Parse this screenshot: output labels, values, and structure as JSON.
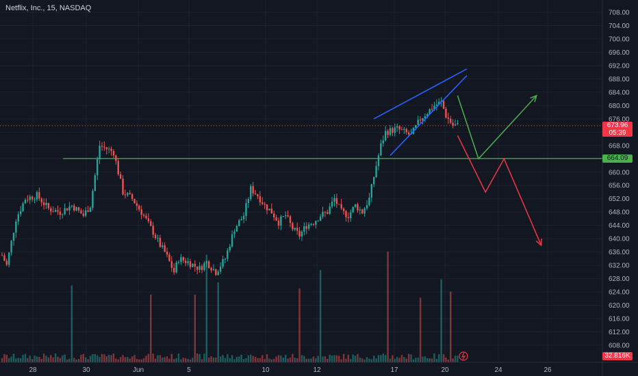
{
  "header": {
    "title": "Netflix, Inc., 15, NASDAQ"
  },
  "colors": {
    "background": "#131722",
    "up": "#26a69a",
    "down": "#ef5350",
    "level": "#4caf50",
    "wedge": "#2962ff",
    "bull": "#4caf50",
    "bear": "#f23645"
  },
  "price_tag": {
    "price": "673.96",
    "timer": "05:39"
  },
  "level_tag": {
    "value": "664.09"
  },
  "volume_tag": {
    "value": "32.816K"
  },
  "chart_data": {
    "type": "candlestick",
    "title": "Netflix, Inc., 15, NASDAQ",
    "xlabel": "",
    "ylabel": "",
    "ylim": [
      604,
      710
    ],
    "y_ticks": [
      "708.00",
      "704.00",
      "700.00",
      "696.00",
      "692.00",
      "688.00",
      "684.00",
      "680.00",
      "676.00",
      "672.00",
      "668.00",
      "664.00",
      "660.00",
      "656.00",
      "652.00",
      "648.00",
      "644.00",
      "640.00",
      "636.00",
      "632.00",
      "628.00",
      "624.00",
      "620.00",
      "616.00",
      "612.00",
      "608.00"
    ],
    "x_ticks": [
      "28",
      "30",
      "Jun",
      "5",
      "10",
      "12",
      "17",
      "20",
      "24",
      "26"
    ],
    "price_path": [
      [
        0,
        635
      ],
      [
        2,
        632
      ],
      [
        6,
        646
      ],
      [
        10,
        652
      ],
      [
        15,
        653
      ],
      [
        20,
        649
      ],
      [
        25,
        648
      ],
      [
        30,
        650
      ],
      [
        35,
        647
      ],
      [
        38,
        650
      ],
      [
        42,
        668
      ],
      [
        48,
        666
      ],
      [
        52,
        654
      ],
      [
        56,
        652
      ],
      [
        60,
        648
      ],
      [
        65,
        642
      ],
      [
        68,
        638
      ],
      [
        70,
        636
      ],
      [
        72,
        633
      ],
      [
        74,
        630
      ],
      [
        76,
        634
      ],
      [
        80,
        633
      ],
      [
        85,
        631
      ],
      [
        88,
        633
      ],
      [
        92,
        630
      ],
      [
        96,
        634
      ],
      [
        100,
        643
      ],
      [
        104,
        647
      ],
      [
        107,
        655
      ],
      [
        110,
        653
      ],
      [
        113,
        650
      ],
      [
        116,
        648
      ],
      [
        119,
        645
      ],
      [
        122,
        647
      ],
      [
        125,
        643
      ],
      [
        128,
        641
      ],
      [
        131,
        644
      ],
      [
        134,
        645
      ],
      [
        137,
        647
      ],
      [
        140,
        648
      ],
      [
        143,
        652
      ],
      [
        146,
        648
      ],
      [
        149,
        647
      ],
      [
        152,
        650
      ],
      [
        155,
        648
      ],
      [
        158,
        652
      ],
      [
        161,
        662
      ],
      [
        163,
        668
      ],
      [
        165,
        672
      ],
      [
        170,
        673
      ],
      [
        176,
        671
      ],
      [
        180,
        676
      ],
      [
        186,
        680
      ],
      [
        189,
        681
      ],
      [
        191,
        677
      ],
      [
        194,
        674
      ],
      [
        196,
        673.96
      ]
    ],
    "volume_spikes": [
      [
        30,
        25
      ],
      [
        64,
        22
      ],
      [
        83,
        22
      ],
      [
        88,
        35
      ],
      [
        93,
        26
      ],
      [
        128,
        24
      ],
      [
        137,
        30
      ],
      [
        166,
        36
      ],
      [
        180,
        21
      ],
      [
        189,
        27
      ],
      [
        193,
        23
      ]
    ],
    "horizontal_level": 664.09,
    "current_price": 673.96,
    "wedge_upper": [
      [
        160,
        676
      ],
      [
        200,
        691
      ]
    ],
    "wedge_lower": [
      [
        167,
        665
      ],
      [
        200,
        689
      ]
    ],
    "projection_bull": [
      [
        196,
        683
      ],
      [
        205,
        664
      ],
      [
        230,
        683
      ]
    ],
    "projection_bear": [
      [
        196,
        671
      ],
      [
        208,
        654
      ],
      [
        216,
        664
      ],
      [
        232,
        638
      ]
    ]
  }
}
